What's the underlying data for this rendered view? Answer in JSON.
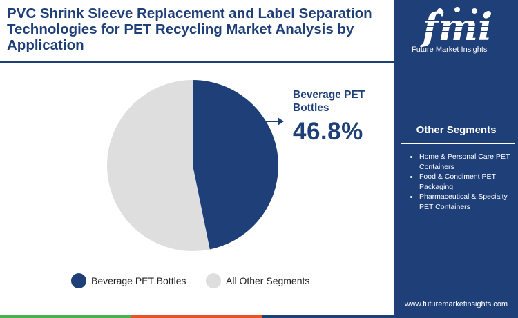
{
  "title": "PVC Shrink Sleeve Replacement and Label Separation Technologies for PET Recycling Market Analysis by Application",
  "chart_data": {
    "type": "pie",
    "slices": [
      {
        "label": "Beverage PET Bottles",
        "value": 46.8,
        "color": "#1e3f78"
      },
      {
        "label": "All Other Segments",
        "value": 53.2,
        "color": "#dedede"
      }
    ],
    "start_angle_deg": 0,
    "direction": "clockwise"
  },
  "callout": {
    "label": "Beverage PET Bottles",
    "value": "46.8%"
  },
  "legend": [
    {
      "label": "Beverage PET Bottles",
      "color": "#1e3f78"
    },
    {
      "label": "All Other Segments",
      "color": "#dedede"
    }
  ],
  "bottom_bar_colors": [
    "#4caf50",
    "#e8542a",
    "#1e3f78",
    "#4a6fb5"
  ],
  "sidebar": {
    "logo_text": "fmi",
    "logo_tagline": "Future Market Insights",
    "segments_title": "Other Segments",
    "segments": [
      "Home & Personal Care PET Containers",
      "Food & Condiment PET Packaging",
      "Pharmaceutical & Specialty PET Containers"
    ],
    "website": "www.futuremarketinsights.com",
    "background": "#1e3f78"
  },
  "icons": [
    "arrow-right-icon",
    "fmi-logo-icon"
  ]
}
